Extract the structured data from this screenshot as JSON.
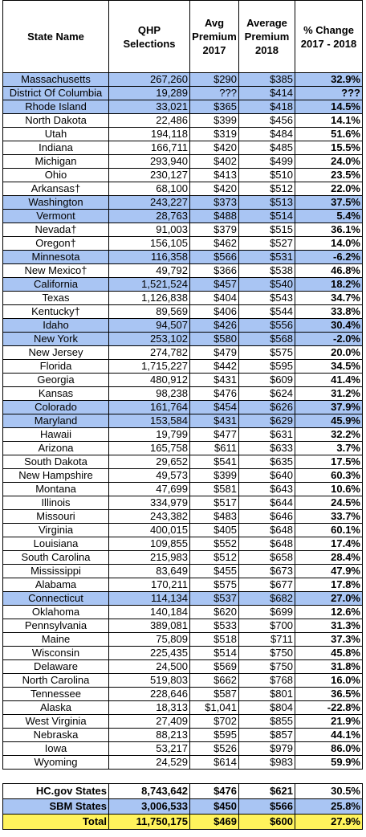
{
  "table": {
    "header": [
      "State Name",
      "QHP Selections",
      "Avg Premium 2017",
      "Average Premium 2018",
      "% Change 2017 - 2018"
    ],
    "highlight_color": "#a9c5f3",
    "rows": [
      {
        "cells": [
          "Massachusetts",
          "267,260",
          "$290",
          "$385",
          "32.9%"
        ],
        "highlight": true
      },
      {
        "cells": [
          "District Of Columbia",
          "19,289",
          "???",
          "$414",
          "???"
        ],
        "highlight": true
      },
      {
        "cells": [
          "Rhode Island",
          "33,021",
          "$365",
          "$418",
          "14.5%"
        ],
        "highlight": true
      },
      {
        "cells": [
          "North Dakota",
          "22,486",
          "$399",
          "$456",
          "14.1%"
        ],
        "highlight": false
      },
      {
        "cells": [
          "Utah",
          "194,118",
          "$319",
          "$484",
          "51.6%"
        ],
        "highlight": false
      },
      {
        "cells": [
          "Indiana",
          "166,711",
          "$420",
          "$485",
          "15.5%"
        ],
        "highlight": false
      },
      {
        "cells": [
          "Michigan",
          "293,940",
          "$402",
          "$499",
          "24.0%"
        ],
        "highlight": false
      },
      {
        "cells": [
          "Ohio",
          "230,127",
          "$413",
          "$510",
          "23.5%"
        ],
        "highlight": false
      },
      {
        "cells": [
          "Arkansas†",
          "68,100",
          "$420",
          "$512",
          "22.0%"
        ],
        "highlight": false
      },
      {
        "cells": [
          "Washington",
          "243,227",
          "$373",
          "$513",
          "37.5%"
        ],
        "highlight": true
      },
      {
        "cells": [
          "Vermont",
          "28,763",
          "$488",
          "$514",
          "5.4%"
        ],
        "highlight": true
      },
      {
        "cells": [
          "Nevada†",
          "91,003",
          "$379",
          "$515",
          "36.1%"
        ],
        "highlight": false
      },
      {
        "cells": [
          "Oregon†",
          "156,105",
          "$462",
          "$527",
          "14.0%"
        ],
        "highlight": false
      },
      {
        "cells": [
          "Minnesota",
          "116,358",
          "$566",
          "$531",
          "-6.2%"
        ],
        "highlight": true
      },
      {
        "cells": [
          "New Mexico†",
          "49,792",
          "$366",
          "$538",
          "46.8%"
        ],
        "highlight": false
      },
      {
        "cells": [
          "California",
          "1,521,524",
          "$457",
          "$540",
          "18.2%"
        ],
        "highlight": true
      },
      {
        "cells": [
          "Texas",
          "1,126,838",
          "$404",
          "$543",
          "34.7%"
        ],
        "highlight": false
      },
      {
        "cells": [
          "Kentucky†",
          "89,569",
          "$406",
          "$544",
          "33.8%"
        ],
        "highlight": false
      },
      {
        "cells": [
          "Idaho",
          "94,507",
          "$426",
          "$556",
          "30.4%"
        ],
        "highlight": true
      },
      {
        "cells": [
          "New York",
          "253,102",
          "$580",
          "$568",
          "-2.0%"
        ],
        "highlight": true
      },
      {
        "cells": [
          "New Jersey",
          "274,782",
          "$479",
          "$575",
          "20.0%"
        ],
        "highlight": false
      },
      {
        "cells": [
          "Florida",
          "1,715,227",
          "$442",
          "$595",
          "34.5%"
        ],
        "highlight": false
      },
      {
        "cells": [
          "Georgia",
          "480,912",
          "$431",
          "$609",
          "41.4%"
        ],
        "highlight": false
      },
      {
        "cells": [
          "Kansas",
          "98,238",
          "$476",
          "$624",
          "31.2%"
        ],
        "highlight": false
      },
      {
        "cells": [
          "Colorado",
          "161,764",
          "$454",
          "$626",
          "37.9%"
        ],
        "highlight": true
      },
      {
        "cells": [
          "Maryland",
          "153,584",
          "$431",
          "$629",
          "45.9%"
        ],
        "highlight": true
      },
      {
        "cells": [
          "Hawaii",
          "19,799",
          "$477",
          "$631",
          "32.2%"
        ],
        "highlight": false
      },
      {
        "cells": [
          "Arizona",
          "165,758",
          "$611",
          "$633",
          "3.7%"
        ],
        "highlight": false
      },
      {
        "cells": [
          "South Dakota",
          "29,652",
          "$541",
          "$635",
          "17.5%"
        ],
        "highlight": false
      },
      {
        "cells": [
          "New Hampshire",
          "49,573",
          "$399",
          "$640",
          "60.3%"
        ],
        "highlight": false
      },
      {
        "cells": [
          "Montana",
          "47,699",
          "$581",
          "$643",
          "10.6%"
        ],
        "highlight": false
      },
      {
        "cells": [
          "Illinois",
          "334,979",
          "$517",
          "$644",
          "24.5%"
        ],
        "highlight": false
      },
      {
        "cells": [
          "Missouri",
          "243,382",
          "$483",
          "$646",
          "33.7%"
        ],
        "highlight": false
      },
      {
        "cells": [
          "Virginia",
          "400,015",
          "$405",
          "$648",
          "60.1%"
        ],
        "highlight": false
      },
      {
        "cells": [
          "Louisiana",
          "109,855",
          "$552",
          "$648",
          "17.4%"
        ],
        "highlight": false
      },
      {
        "cells": [
          "South Carolina",
          "215,983",
          "$512",
          "$658",
          "28.4%"
        ],
        "highlight": false
      },
      {
        "cells": [
          "Mississippi",
          "83,649",
          "$455",
          "$673",
          "47.9%"
        ],
        "highlight": false
      },
      {
        "cells": [
          "Alabama",
          "170,211",
          "$575",
          "$677",
          "17.8%"
        ],
        "highlight": false
      },
      {
        "cells": [
          "Connecticut",
          "114,134",
          "$537",
          "$682",
          "27.0%"
        ],
        "highlight": true
      },
      {
        "cells": [
          "Oklahoma",
          "140,184",
          "$620",
          "$699",
          "12.6%"
        ],
        "highlight": false
      },
      {
        "cells": [
          "Pennsylvania",
          "389,081",
          "$533",
          "$700",
          "31.3%"
        ],
        "highlight": false
      },
      {
        "cells": [
          "Maine",
          "75,809",
          "$518",
          "$711",
          "37.3%"
        ],
        "highlight": false
      },
      {
        "cells": [
          "Wisconsin",
          "225,435",
          "$514",
          "$750",
          "45.8%"
        ],
        "highlight": false
      },
      {
        "cells": [
          "Delaware",
          "24,500",
          "$569",
          "$750",
          "31.8%"
        ],
        "highlight": false
      },
      {
        "cells": [
          "North Carolina",
          "519,803",
          "$662",
          "$768",
          "16.0%"
        ],
        "highlight": false
      },
      {
        "cells": [
          "Tennessee",
          "228,646",
          "$587",
          "$801",
          "36.5%"
        ],
        "highlight": false
      },
      {
        "cells": [
          "Alaska",
          "18,313",
          "$1,041",
          "$804",
          "-22.8%"
        ],
        "highlight": false
      },
      {
        "cells": [
          "West Virginia",
          "27,409",
          "$702",
          "$855",
          "21.9%"
        ],
        "highlight": false
      },
      {
        "cells": [
          "Nebraska",
          "88,213",
          "$595",
          "$857",
          "44.1%"
        ],
        "highlight": false
      },
      {
        "cells": [
          "Iowa",
          "53,217",
          "$526",
          "$979",
          "86.0%"
        ],
        "highlight": false
      },
      {
        "cells": [
          "Wyoming",
          "24,529",
          "$614",
          "$983",
          "59.9%"
        ],
        "highlight": false
      }
    ],
    "summary": [
      {
        "cells": [
          "HC.gov States",
          "8,743,642",
          "$476",
          "$621",
          "30.5%"
        ],
        "color": "#ffffff"
      },
      {
        "cells": [
          "SBM States",
          "3,006,533",
          "$450",
          "$566",
          "25.8%"
        ],
        "color": "#a9c5f3"
      },
      {
        "cells": [
          "Total",
          "11,750,175",
          "$469",
          "$600",
          "27.9%"
        ],
        "color": "#fff35c"
      }
    ]
  }
}
